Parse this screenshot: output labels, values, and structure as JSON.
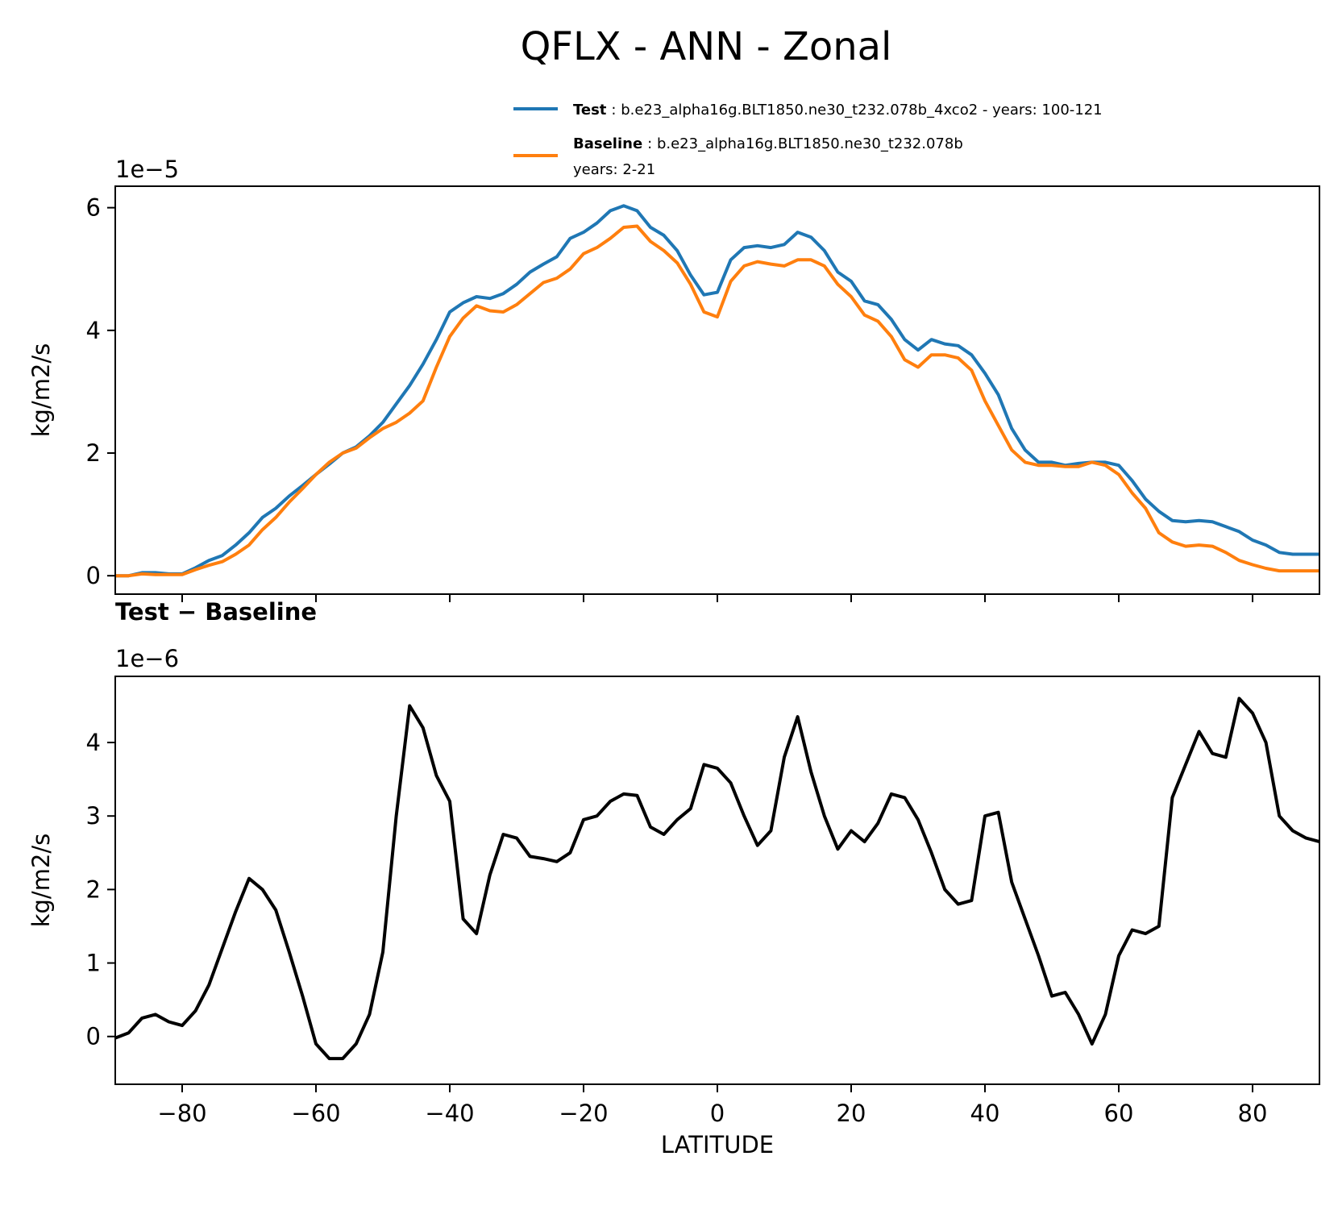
{
  "figure": {
    "title": "QFLX - ANN - Zonal",
    "legend": {
      "test_label": "Test",
      "test_desc": ": b.e23_alpha16g.BLT1850.ne30_t232.078b_4xco2 - years: 100-121",
      "baseline_label": "Baseline",
      "baseline_desc": ": b.e23_alpha16g.BLT1850.ne30_t232.078b",
      "baseline_years": "years: 2-21"
    },
    "colors": {
      "test": "#1f77b4",
      "baseline": "#ff7f0e",
      "diff": "#000000"
    }
  },
  "chart_data": [
    {
      "type": "line",
      "title": "",
      "xlabel": "",
      "ylabel": "kg/m2/s",
      "offset_label": "1e−5",
      "xlim": [
        -90,
        90
      ],
      "ylim": [
        -0.3,
        6.35
      ],
      "x_ticks": [
        -80,
        -60,
        -40,
        -20,
        0,
        20,
        40,
        60,
        80
      ],
      "y_ticks": [
        0,
        2,
        4,
        6
      ],
      "y_tick_labels": [
        "0",
        "2",
        "4",
        "6"
      ],
      "x": [
        -90,
        -88,
        -86,
        -84,
        -82,
        -80,
        -78,
        -76,
        -74,
        -72,
        -70,
        -68,
        -66,
        -64,
        -62,
        -60,
        -58,
        -56,
        -54,
        -52,
        -50,
        -48,
        -46,
        -44,
        -42,
        -40,
        -38,
        -36,
        -34,
        -32,
        -30,
        -28,
        -26,
        -24,
        -22,
        -20,
        -18,
        -16,
        -14,
        -12,
        -10,
        -8,
        -6,
        -4,
        -2,
        0,
        2,
        4,
        6,
        8,
        10,
        12,
        14,
        16,
        18,
        20,
        22,
        24,
        26,
        28,
        30,
        32,
        34,
        36,
        38,
        40,
        42,
        44,
        46,
        48,
        50,
        52,
        54,
        56,
        58,
        60,
        62,
        64,
        66,
        68,
        70,
        72,
        74,
        76,
        78,
        80,
        82,
        84,
        86,
        88,
        90
      ],
      "series": [
        {
          "name": "Test",
          "color": "#1f77b4",
          "values": [
            0.0,
            0.0,
            0.05,
            0.05,
            0.03,
            0.03,
            0.13,
            0.25,
            0.33,
            0.5,
            0.7,
            0.95,
            1.1,
            1.3,
            1.47,
            1.65,
            1.82,
            2.0,
            2.1,
            2.28,
            2.5,
            2.8,
            3.1,
            3.45,
            3.85,
            4.3,
            4.45,
            4.55,
            4.52,
            4.6,
            4.75,
            4.95,
            5.08,
            5.2,
            5.5,
            5.6,
            5.75,
            5.95,
            6.03,
            5.95,
            5.68,
            5.55,
            5.3,
            4.9,
            4.58,
            4.62,
            5.15,
            5.35,
            5.38,
            5.35,
            5.4,
            5.6,
            5.52,
            5.3,
            4.95,
            4.8,
            4.48,
            4.42,
            4.18,
            3.85,
            3.68,
            3.85,
            3.78,
            3.75,
            3.6,
            3.3,
            2.95,
            2.4,
            2.05,
            1.85,
            1.85,
            1.8,
            1.83,
            1.85,
            1.85,
            1.8,
            1.55,
            1.25,
            1.05,
            0.9,
            0.88,
            0.9,
            0.88,
            0.8,
            0.72,
            0.58,
            0.5,
            0.38,
            0.35,
            0.35,
            0.35
          ]
        },
        {
          "name": "Baseline",
          "color": "#ff7f0e",
          "values": [
            0.0,
            0.0,
            0.03,
            0.02,
            0.02,
            0.02,
            0.1,
            0.17,
            0.23,
            0.35,
            0.5,
            0.75,
            0.95,
            1.2,
            1.42,
            1.65,
            1.85,
            2.0,
            2.08,
            2.25,
            2.4,
            2.5,
            2.65,
            2.85,
            3.4,
            3.9,
            4.2,
            4.4,
            4.32,
            4.3,
            4.42,
            4.6,
            4.78,
            4.85,
            5.0,
            5.25,
            5.35,
            5.5,
            5.68,
            5.7,
            5.45,
            5.3,
            5.1,
            4.75,
            4.3,
            4.22,
            4.8,
            5.05,
            5.12,
            5.08,
            5.05,
            5.15,
            5.15,
            5.05,
            4.75,
            4.55,
            4.25,
            4.15,
            3.9,
            3.52,
            3.4,
            3.6,
            3.6,
            3.55,
            3.35,
            2.85,
            2.45,
            2.05,
            1.85,
            1.8,
            1.8,
            1.78,
            1.78,
            1.85,
            1.8,
            1.65,
            1.35,
            1.1,
            0.7,
            0.55,
            0.48,
            0.5,
            0.48,
            0.38,
            0.25,
            0.18,
            0.12,
            0.08,
            0.08,
            0.08,
            0.08
          ]
        }
      ]
    },
    {
      "type": "line",
      "title": "Test − Baseline",
      "xlabel": "LATITUDE",
      "ylabel": "kg/m2/s",
      "offset_label": "1e−6",
      "xlim": [
        -90,
        90
      ],
      "ylim": [
        -0.65,
        4.9
      ],
      "x_ticks": [
        -80,
        -60,
        -40,
        -20,
        0,
        20,
        40,
        60,
        80
      ],
      "x_tick_labels": [
        "−80",
        "−60",
        "−40",
        "−20",
        "0",
        "20",
        "40",
        "60",
        "80"
      ],
      "y_ticks": [
        0,
        1,
        2,
        3,
        4
      ],
      "y_tick_labels": [
        "0",
        "1",
        "2",
        "3",
        "4"
      ],
      "x": [
        -90,
        -88,
        -86,
        -84,
        -82,
        -80,
        -78,
        -76,
        -74,
        -72,
        -70,
        -68,
        -66,
        -64,
        -62,
        -60,
        -58,
        -56,
        -54,
        -52,
        -50,
        -48,
        -46,
        -44,
        -42,
        -40,
        -38,
        -36,
        -34,
        -32,
        -30,
        -28,
        -26,
        -24,
        -22,
        -20,
        -18,
        -16,
        -14,
        -12,
        -10,
        -8,
        -6,
        -4,
        -2,
        0,
        2,
        4,
        6,
        8,
        10,
        12,
        14,
        16,
        18,
        20,
        22,
        24,
        26,
        28,
        30,
        32,
        34,
        36,
        38,
        40,
        42,
        44,
        46,
        48,
        50,
        52,
        54,
        56,
        58,
        60,
        62,
        64,
        66,
        68,
        70,
        72,
        74,
        76,
        78,
        80,
        82,
        84,
        86,
        88,
        90
      ],
      "series": [
        {
          "name": "Test − Baseline",
          "color": "#000000",
          "values": [
            -0.02,
            0.05,
            0.25,
            0.3,
            0.2,
            0.15,
            0.35,
            0.7,
            1.2,
            1.7,
            2.15,
            2.0,
            1.72,
            1.15,
            0.55,
            -0.1,
            -0.3,
            -0.3,
            -0.1,
            0.3,
            1.15,
            3.0,
            4.5,
            4.2,
            3.55,
            3.2,
            1.6,
            1.4,
            2.2,
            2.75,
            2.7,
            2.45,
            2.42,
            2.38,
            2.5,
            2.95,
            3.0,
            3.2,
            3.3,
            3.28,
            2.85,
            2.75,
            2.95,
            3.1,
            3.7,
            3.65,
            3.45,
            3.0,
            2.6,
            2.8,
            3.8,
            4.35,
            3.6,
            3.0,
            2.55,
            2.8,
            2.65,
            2.9,
            3.3,
            3.25,
            2.95,
            2.5,
            2.0,
            1.8,
            1.85,
            3.0,
            3.05,
            2.1,
            1.6,
            1.1,
            0.55,
            0.6,
            0.3,
            -0.1,
            0.3,
            1.1,
            1.45,
            1.4,
            1.5,
            3.25,
            3.7,
            4.15,
            3.85,
            3.8,
            4.6,
            4.4,
            4.0,
            3.0,
            2.8,
            2.7,
            2.65
          ]
        }
      ]
    }
  ]
}
